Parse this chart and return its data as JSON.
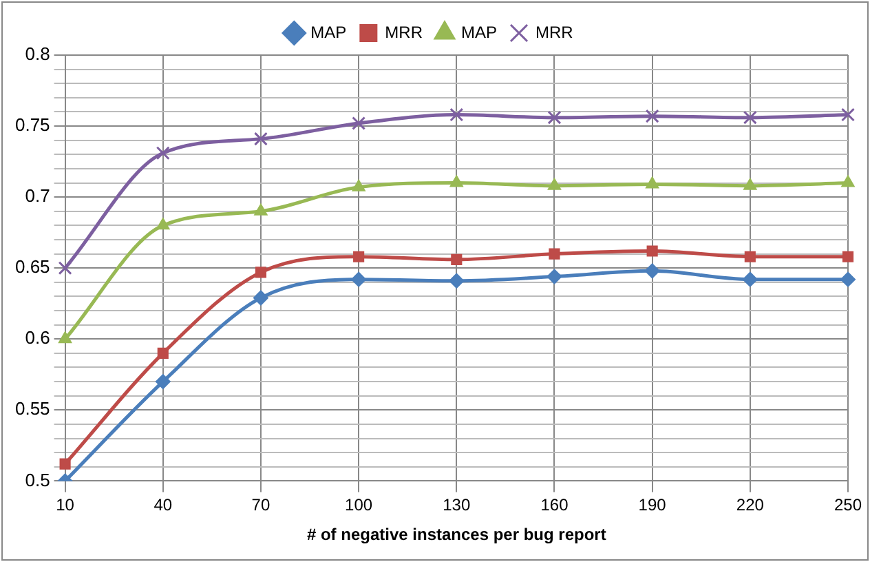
{
  "chart_data": {
    "type": "line",
    "xlabel": "# of negative instances per bug report",
    "categories": [
      "10",
      "40",
      "70",
      "100",
      "130",
      "160",
      "190",
      "220",
      "250"
    ],
    "series": [
      {
        "name": "MAP",
        "color": "#4a7ebb",
        "marker": "diamond",
        "values": [
          0.5,
          0.57,
          0.629,
          0.642,
          0.641,
          0.644,
          0.648,
          0.642,
          0.642
        ]
      },
      {
        "name": "MRR",
        "color": "#be4b48",
        "marker": "square",
        "values": [
          0.512,
          0.59,
          0.647,
          0.658,
          0.656,
          0.66,
          0.662,
          0.658,
          0.658
        ]
      },
      {
        "name": "MAP",
        "color": "#98b954",
        "marker": "triangle",
        "values": [
          0.6,
          0.68,
          0.69,
          0.707,
          0.71,
          0.708,
          0.709,
          0.708,
          0.71
        ]
      },
      {
        "name": "MRR",
        "color": "#7d5fa0",
        "marker": "cross",
        "values": [
          0.65,
          0.731,
          0.741,
          0.752,
          0.758,
          0.756,
          0.757,
          0.756,
          0.758
        ]
      }
    ],
    "ylim": [
      0.5,
      0.8
    ],
    "yticks": [
      0.5,
      {
        "value": 0.51,
        "label": null
      },
      {
        "value": 0.52,
        "label": null
      },
      {
        "value": 0.53,
        "label": null
      },
      {
        "value": 0.54,
        "label": null
      },
      0.55,
      {
        "value": 0.56,
        "label": null
      },
      {
        "value": 0.57,
        "label": null
      },
      {
        "value": 0.58,
        "label": null
      },
      {
        "value": 0.59,
        "label": null
      },
      0.6,
      {
        "value": 0.61,
        "label": null
      },
      {
        "value": 0.62,
        "label": null
      },
      {
        "value": 0.63,
        "label": null
      },
      {
        "value": 0.64,
        "label": null
      },
      0.65,
      {
        "value": 0.66,
        "label": null
      },
      {
        "value": 0.67,
        "label": null
      },
      {
        "value": 0.68,
        "label": null
      },
      {
        "value": 0.69,
        "label": null
      },
      0.7,
      {
        "value": 0.71,
        "label": null
      },
      {
        "value": 0.72,
        "label": null
      },
      {
        "value": 0.73,
        "label": null
      },
      {
        "value": 0.74,
        "label": null
      },
      0.75,
      {
        "value": 0.76,
        "label": null
      },
      {
        "value": 0.77,
        "label": null
      },
      {
        "value": 0.78,
        "label": null
      },
      {
        "value": 0.79,
        "label": null
      },
      0.8
    ],
    "grid": true,
    "legend": "top"
  }
}
